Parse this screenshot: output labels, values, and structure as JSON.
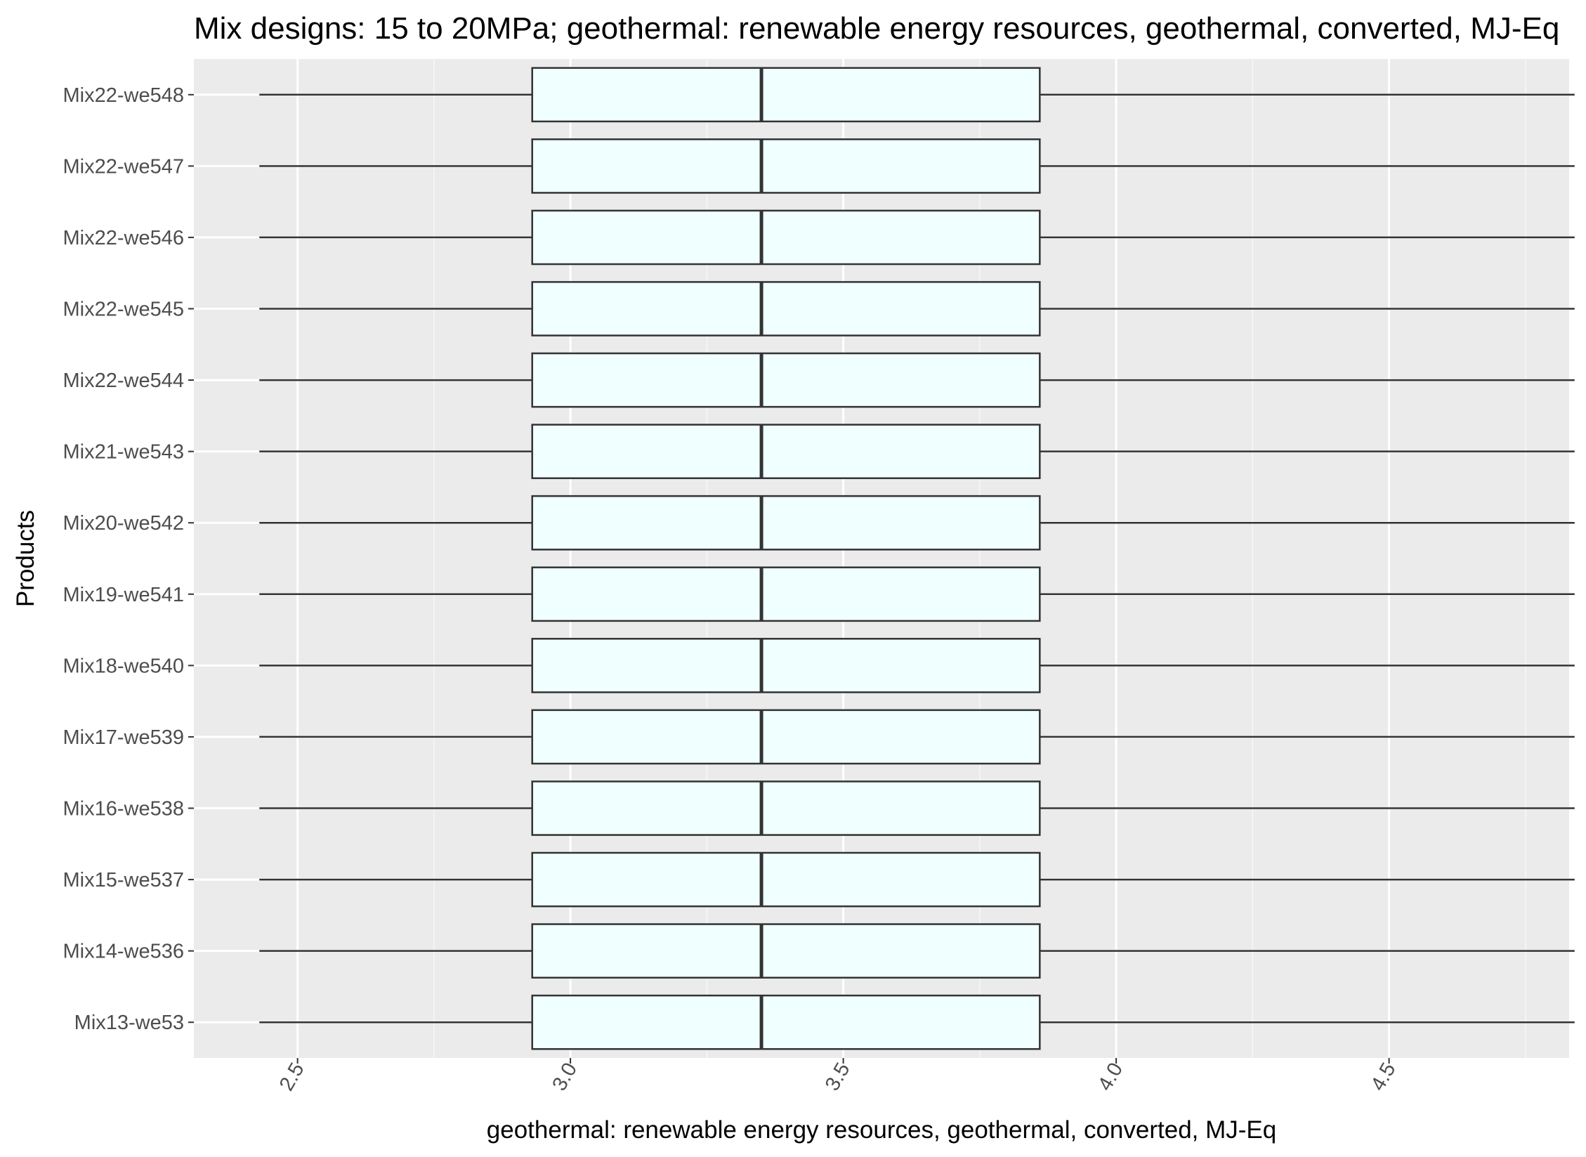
{
  "chart_data": {
    "type": "boxplot",
    "orientation": "horizontal",
    "title": "Mix designs: 15 to 20MPa; geothermal: renewable energy resources, geothermal, converted, MJ-Eq",
    "xlabel": "geothermal: renewable energy resources, geothermal, converted, MJ-Eq",
    "ylabel": "Products",
    "xlim": [
      2.31,
      4.83
    ],
    "x_ticks": [
      "2.5",
      "3.0",
      "3.5",
      "4.0",
      "4.5"
    ],
    "x_tick_values": [
      2.5,
      3.0,
      3.5,
      4.0,
      4.5
    ],
    "grid": true,
    "legend": "none",
    "box_fill": "#f0ffff",
    "box_stroke": "#333333",
    "panel_background": "#ebebeb",
    "categories": [
      "Mix13-we53",
      "Mix14-we536",
      "Mix15-we537",
      "Mix16-we538",
      "Mix17-we539",
      "Mix18-we540",
      "Mix19-we541",
      "Mix20-we542",
      "Mix21-we543",
      "Mix22-we544",
      "Mix22-we545",
      "Mix22-we546",
      "Mix22-we547",
      "Mix22-we548"
    ],
    "series": [
      {
        "category": "Mix13-we53",
        "min": 2.43,
        "q1": 2.93,
        "median": 3.35,
        "q3": 3.86,
        "max": 4.84
      },
      {
        "category": "Mix14-we536",
        "min": 2.43,
        "q1": 2.93,
        "median": 3.35,
        "q3": 3.86,
        "max": 4.84
      },
      {
        "category": "Mix15-we537",
        "min": 2.43,
        "q1": 2.93,
        "median": 3.35,
        "q3": 3.86,
        "max": 4.84
      },
      {
        "category": "Mix16-we538",
        "min": 2.43,
        "q1": 2.93,
        "median": 3.35,
        "q3": 3.86,
        "max": 4.84
      },
      {
        "category": "Mix17-we539",
        "min": 2.43,
        "q1": 2.93,
        "median": 3.35,
        "q3": 3.86,
        "max": 4.84
      },
      {
        "category": "Mix18-we540",
        "min": 2.43,
        "q1": 2.93,
        "median": 3.35,
        "q3": 3.86,
        "max": 4.84
      },
      {
        "category": "Mix19-we541",
        "min": 2.43,
        "q1": 2.93,
        "median": 3.35,
        "q3": 3.86,
        "max": 4.84
      },
      {
        "category": "Mix20-we542",
        "min": 2.43,
        "q1": 2.93,
        "median": 3.35,
        "q3": 3.86,
        "max": 4.84
      },
      {
        "category": "Mix21-we543",
        "min": 2.43,
        "q1": 2.93,
        "median": 3.35,
        "q3": 3.86,
        "max": 4.84
      },
      {
        "category": "Mix22-we544",
        "min": 2.43,
        "q1": 2.93,
        "median": 3.35,
        "q3": 3.86,
        "max": 4.84
      },
      {
        "category": "Mix22-we545",
        "min": 2.43,
        "q1": 2.93,
        "median": 3.35,
        "q3": 3.86,
        "max": 4.84
      },
      {
        "category": "Mix22-we546",
        "min": 2.43,
        "q1": 2.93,
        "median": 3.35,
        "q3": 3.86,
        "max": 4.84
      },
      {
        "category": "Mix22-we547",
        "min": 2.43,
        "q1": 2.93,
        "median": 3.35,
        "q3": 3.86,
        "max": 4.84
      },
      {
        "category": "Mix22-we548",
        "min": 2.43,
        "q1": 2.93,
        "median": 3.35,
        "q3": 3.86,
        "max": 4.84
      }
    ]
  }
}
